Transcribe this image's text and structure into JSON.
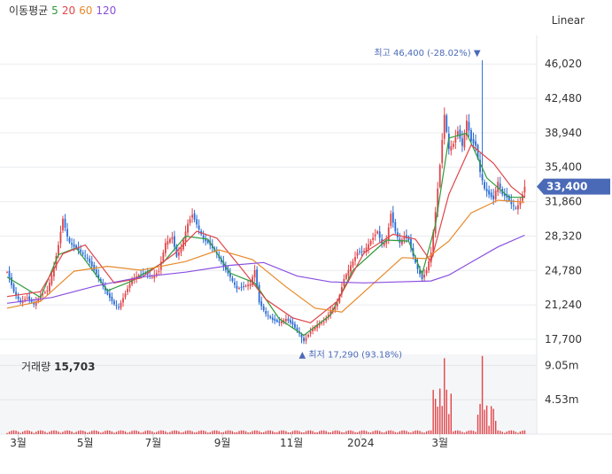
{
  "legend": {
    "title": "이동평균",
    "periods": [
      {
        "label": "5",
        "color": "#2e9a3a"
      },
      {
        "label": "20",
        "color": "#e0454a"
      },
      {
        "label": "60",
        "color": "#e8892a"
      },
      {
        "label": "120",
        "color": "#8a4fe0"
      }
    ]
  },
  "scale_toggle": "Linear",
  "volume_panel": {
    "title": "거래량",
    "value": "15,703"
  },
  "colors": {
    "up": "#e0454a",
    "down": "#2b6cd4",
    "price_tag": "#4a6ab8",
    "volume": "#e0454a"
  },
  "chart_data": {
    "type": "candlestick",
    "x_tick_labels": [
      "3월",
      "5월",
      "7월",
      "9월",
      "11월",
      "2024",
      "3월"
    ],
    "y_tick_labels": [
      "46,020",
      "42,480",
      "38,940",
      "35,400",
      "31,860",
      "28,320",
      "24,780",
      "21,240",
      "17,700"
    ],
    "y_ticks": [
      46020,
      42480,
      38940,
      35400,
      31860,
      28320,
      24780,
      21240,
      17700
    ],
    "ylim": [
      16600,
      48500
    ],
    "current_price": 33400,
    "current_price_label": "33,400",
    "high": {
      "value": 46400,
      "label": "최고",
      "text": "46,400 (-28.02%)"
    },
    "low": {
      "value": 17290,
      "label": "최저",
      "text": "17,290 (93.18%)"
    },
    "volume_tick_labels": [
      "9.05m",
      "4.53m"
    ],
    "volume_ticks": [
      9.05,
      4.53
    ],
    "volume_max": 10.5,
    "price_path": [
      [
        0,
        24600
      ],
      [
        6,
        22600
      ],
      [
        12,
        21500
      ],
      [
        18,
        22000
      ],
      [
        24,
        21300
      ],
      [
        30,
        22200
      ],
      [
        36,
        22700
      ],
      [
        42,
        25100
      ],
      [
        46,
        27400
      ],
      [
        50,
        30100
      ],
      [
        55,
        27800
      ],
      [
        60,
        27200
      ],
      [
        66,
        26700
      ],
      [
        72,
        26000
      ],
      [
        78,
        24800
      ],
      [
        84,
        23600
      ],
      [
        90,
        22300
      ],
      [
        96,
        21300
      ],
      [
        100,
        21000
      ],
      [
        106,
        22400
      ],
      [
        112,
        23900
      ],
      [
        118,
        24300
      ],
      [
        124,
        24500
      ],
      [
        130,
        24100
      ],
      [
        136,
        24700
      ],
      [
        142,
        27600
      ],
      [
        148,
        28200
      ],
      [
        152,
        26200
      ],
      [
        156,
        27100
      ],
      [
        162,
        29600
      ],
      [
        166,
        30500
      ],
      [
        170,
        29500
      ],
      [
        176,
        28000
      ],
      [
        182,
        27400
      ],
      [
        188,
        26500
      ],
      [
        194,
        25200
      ],
      [
        200,
        24100
      ],
      [
        206,
        22900
      ],
      [
        212,
        23100
      ],
      [
        218,
        23400
      ],
      [
        222,
        24800
      ],
      [
        226,
        21500
      ],
      [
        232,
        20300
      ],
      [
        238,
        19700
      ],
      [
        244,
        19400
      ],
      [
        250,
        19800
      ],
      [
        256,
        19200
      ],
      [
        262,
        18300
      ],
      [
        266,
        17500
      ],
      [
        272,
        18500
      ],
      [
        278,
        19200
      ],
      [
        284,
        19500
      ],
      [
        290,
        20600
      ],
      [
        296,
        21400
      ],
      [
        302,
        23900
      ],
      [
        308,
        25300
      ],
      [
        314,
        26600
      ],
      [
        320,
        26800
      ],
      [
        326,
        27800
      ],
      [
        332,
        28800
      ],
      [
        336,
        27500
      ],
      [
        340,
        27800
      ],
      [
        344,
        30600
      ],
      [
        348,
        28800
      ],
      [
        352,
        27600
      ],
      [
        356,
        28300
      ],
      [
        360,
        27900
      ],
      [
        364,
        26300
      ],
      [
        368,
        24900
      ],
      [
        372,
        23900
      ],
      [
        376,
        24800
      ],
      [
        380,
        26600
      ],
      [
        384,
        30800
      ],
      [
        388,
        35600
      ],
      [
        392,
        40800
      ],
      [
        396,
        37300
      ],
      [
        400,
        37800
      ],
      [
        404,
        39100
      ],
      [
        408,
        37600
      ],
      [
        412,
        40200
      ],
      [
        416,
        38100
      ],
      [
        420,
        37600
      ],
      [
        424,
        34900
      ],
      [
        428,
        33200
      ],
      [
        432,
        32600
      ],
      [
        436,
        32100
      ],
      [
        440,
        33900
      ],
      [
        444,
        32600
      ],
      [
        448,
        32300
      ],
      [
        452,
        31600
      ],
      [
        456,
        31200
      ],
      [
        460,
        31800
      ],
      [
        464,
        33400
      ]
    ],
    "ma_series": [
      {
        "period": "5",
        "values": [
          [
            0,
            24100
          ],
          [
            30,
            22000
          ],
          [
            46,
            26400
          ],
          [
            62,
            27100
          ],
          [
            90,
            22700
          ],
          [
            110,
            23600
          ],
          [
            140,
            25600
          ],
          [
            160,
            28300
          ],
          [
            180,
            28000
          ],
          [
            200,
            24500
          ],
          [
            222,
            23500
          ],
          [
            244,
            19800
          ],
          [
            266,
            18100
          ],
          [
            290,
            20200
          ],
          [
            310,
            24800
          ],
          [
            340,
            27900
          ],
          [
            360,
            27800
          ],
          [
            372,
            24400
          ],
          [
            384,
            29500
          ],
          [
            396,
            38400
          ],
          [
            412,
            38900
          ],
          [
            430,
            34300
          ],
          [
            450,
            32300
          ],
          [
            464,
            32300
          ]
        ]
      },
      {
        "period": "20",
        "values": [
          [
            0,
            22100
          ],
          [
            30,
            22600
          ],
          [
            50,
            26500
          ],
          [
            70,
            27400
          ],
          [
            96,
            23500
          ],
          [
            120,
            24000
          ],
          [
            150,
            26500
          ],
          [
            170,
            28800
          ],
          [
            188,
            28100
          ],
          [
            210,
            25000
          ],
          [
            232,
            21800
          ],
          [
            256,
            19900
          ],
          [
            272,
            19400
          ],
          [
            296,
            21600
          ],
          [
            320,
            26600
          ],
          [
            346,
            28500
          ],
          [
            366,
            28000
          ],
          [
            380,
            25700
          ],
          [
            396,
            32600
          ],
          [
            416,
            37700
          ],
          [
            436,
            35800
          ],
          [
            452,
            33400
          ],
          [
            464,
            32300
          ]
        ]
      },
      {
        "period": "60",
        "values": [
          [
            0,
            20900
          ],
          [
            30,
            21600
          ],
          [
            60,
            24700
          ],
          [
            90,
            25200
          ],
          [
            120,
            24800
          ],
          [
            160,
            25700
          ],
          [
            190,
            26900
          ],
          [
            220,
            25900
          ],
          [
            250,
            23100
          ],
          [
            276,
            20900
          ],
          [
            300,
            20500
          ],
          [
            330,
            23600
          ],
          [
            354,
            26100
          ],
          [
            376,
            26000
          ],
          [
            396,
            27800
          ],
          [
            416,
            30700
          ],
          [
            440,
            32000
          ],
          [
            464,
            31800
          ]
        ]
      },
      {
        "period": "120",
        "values": [
          [
            0,
            21400
          ],
          [
            40,
            22000
          ],
          [
            80,
            23200
          ],
          [
            120,
            24100
          ],
          [
            160,
            24600
          ],
          [
            200,
            25300
          ],
          [
            230,
            25600
          ],
          [
            260,
            24200
          ],
          [
            290,
            23600
          ],
          [
            320,
            23500
          ],
          [
            350,
            23600
          ],
          [
            380,
            23700
          ],
          [
            396,
            24300
          ],
          [
            414,
            25500
          ],
          [
            440,
            27200
          ],
          [
            464,
            28400
          ]
        ]
      }
    ]
  }
}
